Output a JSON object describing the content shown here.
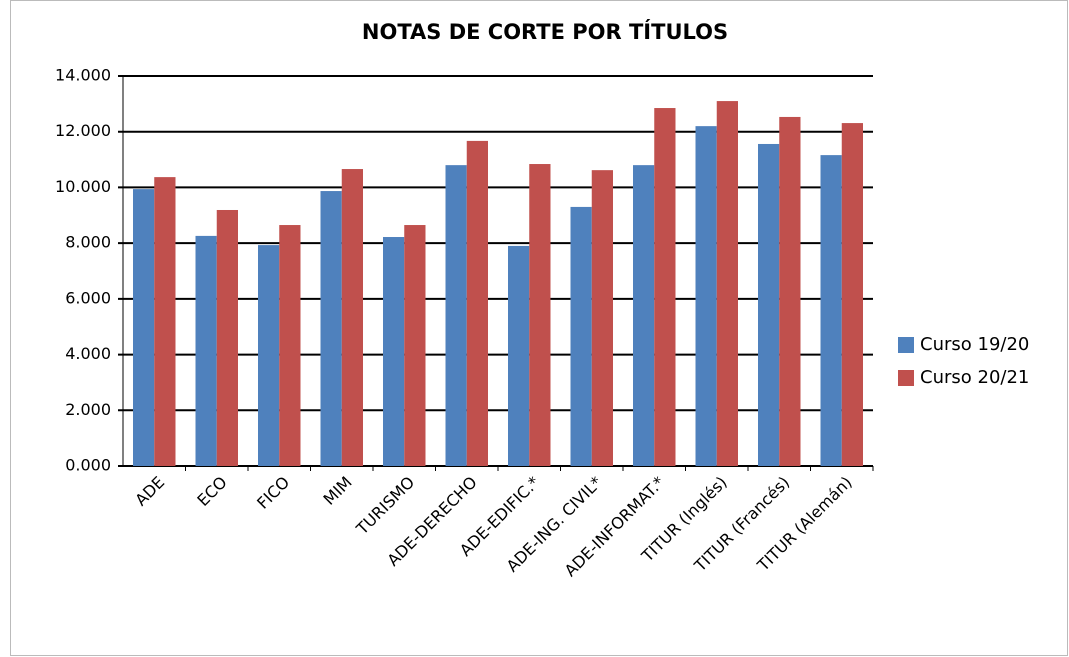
{
  "chart_data": {
    "type": "bar",
    "title": "NOTAS DE CORTE POR TÍTULOS",
    "categories": [
      "ADE",
      "ECO",
      "FICO",
      "MIM",
      "TURISMO",
      "ADE-DERECHO",
      "ADE-EDIFIC.*",
      "ADE-ING. CIVIL*",
      "ADE-INFORMAT.*",
      "TITUR (Inglés)",
      "TITUR (Francés)",
      "TITUR (Alemán)"
    ],
    "series": [
      {
        "name": "Curso 19/20",
        "color": "#4f81bd",
        "values": [
          9.94,
          8.26,
          7.93,
          9.87,
          8.22,
          10.8,
          7.9,
          9.3,
          10.8,
          12.2,
          11.56,
          11.16
        ]
      },
      {
        "name": "Curso 20/21",
        "color": "#c0504d",
        "values": [
          10.37,
          9.19,
          8.65,
          10.66,
          8.65,
          11.67,
          10.84,
          10.62,
          12.85,
          13.1,
          12.53,
          12.31
        ]
      }
    ],
    "ylim": [
      0,
      14
    ],
    "yticks": [
      {
        "value": 0,
        "label": "0.000"
      },
      {
        "value": 2,
        "label": "2.000"
      },
      {
        "value": 4,
        "label": "4.000"
      },
      {
        "value": 6,
        "label": "6.000"
      },
      {
        "value": 8,
        "label": "8.000"
      },
      {
        "value": 10,
        "label": "10.000"
      },
      {
        "value": 12,
        "label": "12.000"
      },
      {
        "value": 14,
        "label": "14.000"
      }
    ],
    "grid": true,
    "legend": "right"
  }
}
